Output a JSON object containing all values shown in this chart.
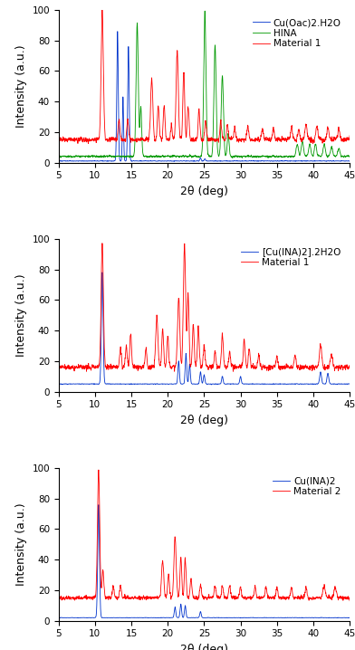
{
  "xlim": [
    5,
    45
  ],
  "ylim": [
    0,
    100
  ],
  "xlabel": "2θ (deg)",
  "ylabel": "Intensity (a.u.)",
  "colors": {
    "red": "#FF0000",
    "blue": "#0033CC",
    "green": "#009900"
  },
  "panel1": {
    "legend": [
      "Material 1",
      "Cu(Oac)2.H2O",
      "HINA"
    ],
    "legend_colors": [
      "#FF0000",
      "#0033CC",
      "#009900"
    ]
  },
  "panel2": {
    "legend": [
      "Material 1",
      "[Cu(INA)2].2H2O"
    ],
    "legend_colors": [
      "#FF0000",
      "#0033CC"
    ]
  },
  "panel3": {
    "legend": [
      "Material 2",
      "Cu(INA)2"
    ],
    "legend_colors": [
      "#FF0000",
      "#0033CC"
    ]
  },
  "background_color": "#ffffff",
  "tick_fontsize": 7.5,
  "label_fontsize": 9,
  "legend_fontsize": 7.5
}
